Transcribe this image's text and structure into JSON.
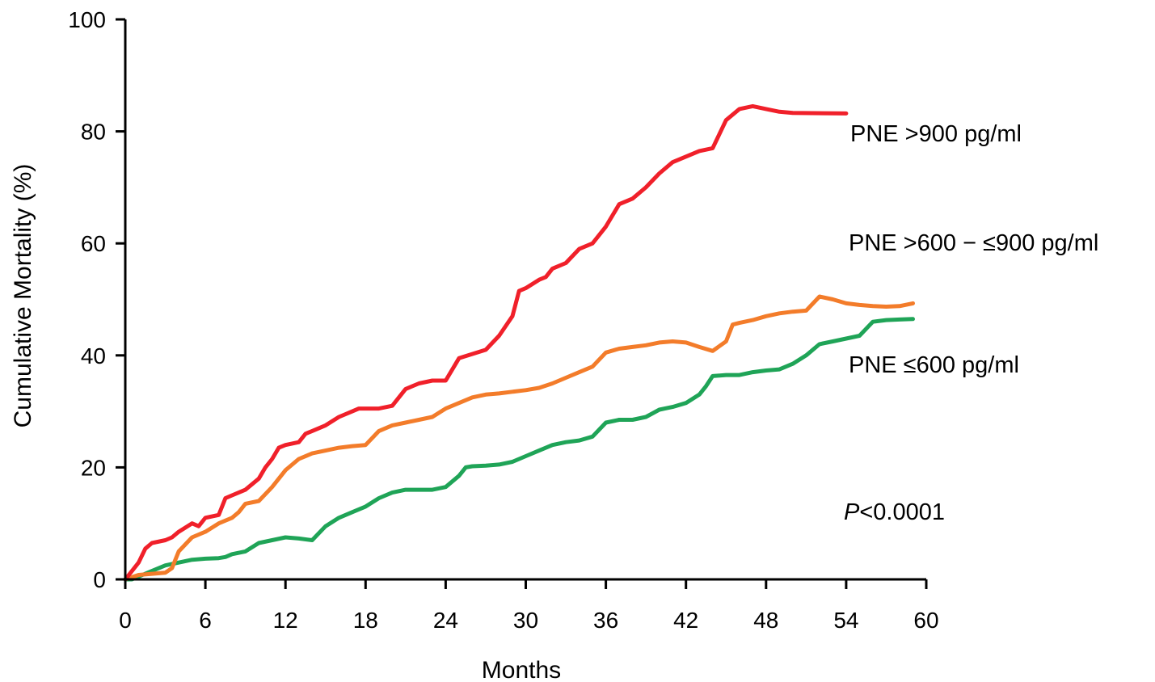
{
  "chart_data": {
    "type": "line",
    "xlabel": "Months",
    "ylabel": "Cumulative Mortality (%)",
    "xlim": [
      0,
      60
    ],
    "ylim": [
      0,
      100
    ],
    "xticks": [
      "0",
      "6",
      "12",
      "18",
      "24",
      "30",
      "36",
      "42",
      "48",
      "54",
      "60"
    ],
    "yticks": [
      "0",
      "20",
      "40",
      "60",
      "80",
      "100"
    ],
    "grid": false,
    "annotation": {
      "prefix": "P",
      "text": "<0.0001"
    },
    "series": [
      {
        "name": "PNE >900 pg/ml",
        "color": "#f0202a",
        "points": [
          [
            0,
            0
          ],
          [
            0.5,
            1.5
          ],
          [
            1,
            3
          ],
          [
            1.5,
            5.5
          ],
          [
            2,
            6.5
          ],
          [
            3,
            7
          ],
          [
            3.5,
            7.5
          ],
          [
            4,
            8.5
          ],
          [
            5,
            10
          ],
          [
            5.5,
            9.5
          ],
          [
            6,
            11
          ],
          [
            7,
            11.5
          ],
          [
            7.5,
            14.5
          ],
          [
            8,
            15
          ],
          [
            9,
            16
          ],
          [
            10,
            18
          ],
          [
            10.5,
            20
          ],
          [
            11,
            21.5
          ],
          [
            11.5,
            23.5
          ],
          [
            12,
            24
          ],
          [
            13,
            24.5
          ],
          [
            13.5,
            26
          ],
          [
            14,
            26.5
          ],
          [
            15,
            27.5
          ],
          [
            16,
            29
          ],
          [
            17,
            30
          ],
          [
            17.5,
            30.5
          ],
          [
            19,
            30.5
          ],
          [
            20,
            31
          ],
          [
            21,
            34
          ],
          [
            22,
            35
          ],
          [
            23,
            35.5
          ],
          [
            24,
            35.5
          ],
          [
            25,
            39.5
          ],
          [
            27,
            41
          ],
          [
            28,
            43.5
          ],
          [
            29,
            47
          ],
          [
            29.5,
            51.5
          ],
          [
            30,
            52
          ],
          [
            31,
            53.5
          ],
          [
            31.5,
            54
          ],
          [
            32,
            55.5
          ],
          [
            33,
            56.5
          ],
          [
            34,
            59
          ],
          [
            35,
            60
          ],
          [
            36,
            63
          ],
          [
            37,
            67
          ],
          [
            38,
            68
          ],
          [
            39,
            70
          ],
          [
            40,
            72.5
          ],
          [
            41,
            74.5
          ],
          [
            42,
            75.5
          ],
          [
            43,
            76.5
          ],
          [
            44,
            77
          ],
          [
            44.5,
            79.5
          ],
          [
            45,
            82
          ],
          [
            46,
            84
          ],
          [
            47,
            84.5
          ],
          [
            48,
            84
          ],
          [
            49,
            83.5
          ],
          [
            50,
            83.3
          ],
          [
            54,
            83.2
          ]
        ]
      },
      {
        "name": "PNE >600 − ≤900 pg/ml",
        "color": "#f37c2a",
        "points": [
          [
            0,
            0
          ],
          [
            1,
            0.8
          ],
          [
            2,
            1
          ],
          [
            3,
            1.2
          ],
          [
            3.5,
            2
          ],
          [
            4,
            5
          ],
          [
            5,
            7.5
          ],
          [
            6,
            8.5
          ],
          [
            7,
            10
          ],
          [
            8,
            11
          ],
          [
            8.5,
            12
          ],
          [
            9,
            13.5
          ],
          [
            10,
            14
          ],
          [
            11,
            16.5
          ],
          [
            12,
            19.5
          ],
          [
            13,
            21.5
          ],
          [
            14,
            22.5
          ],
          [
            15,
            23
          ],
          [
            16,
            23.5
          ],
          [
            17,
            23.8
          ],
          [
            18,
            24
          ],
          [
            19,
            26.5
          ],
          [
            20,
            27.5
          ],
          [
            21,
            28
          ],
          [
            22,
            28.5
          ],
          [
            23,
            29
          ],
          [
            24,
            30.5
          ],
          [
            25,
            31.5
          ],
          [
            26,
            32.5
          ],
          [
            27,
            33
          ],
          [
            28,
            33.2
          ],
          [
            29,
            33.5
          ],
          [
            30,
            33.8
          ],
          [
            31,
            34.2
          ],
          [
            32,
            35
          ],
          [
            33,
            36
          ],
          [
            34,
            37
          ],
          [
            35,
            38
          ],
          [
            36,
            40.5
          ],
          [
            37,
            41.2
          ],
          [
            38,
            41.5
          ],
          [
            39,
            41.8
          ],
          [
            40,
            42.3
          ],
          [
            41,
            42.5
          ],
          [
            42,
            42.3
          ],
          [
            43,
            41.5
          ],
          [
            44,
            40.8
          ],
          [
            45,
            42.5
          ],
          [
            45.5,
            45.5
          ],
          [
            46,
            45.8
          ],
          [
            47,
            46.3
          ],
          [
            48,
            47
          ],
          [
            49,
            47.5
          ],
          [
            50,
            47.8
          ],
          [
            51,
            48
          ],
          [
            52,
            50.5
          ],
          [
            53,
            50
          ],
          [
            54,
            49.3
          ],
          [
            55,
            49
          ],
          [
            56,
            48.8
          ],
          [
            57,
            48.7
          ],
          [
            58,
            48.8
          ],
          [
            59,
            49.3
          ]
        ]
      },
      {
        "name": "PNE ≤600 pg/ml",
        "color": "#1fa457",
        "points": [
          [
            0,
            0
          ],
          [
            0.5,
            0
          ],
          [
            1,
            0.5
          ],
          [
            2,
            1.5
          ],
          [
            3,
            2.5
          ],
          [
            4,
            3
          ],
          [
            5,
            3.5
          ],
          [
            6,
            3.7
          ],
          [
            7,
            3.8
          ],
          [
            7.5,
            4
          ],
          [
            8,
            4.5
          ],
          [
            9,
            5
          ],
          [
            10,
            6.5
          ],
          [
            11,
            7
          ],
          [
            12,
            7.5
          ],
          [
            13,
            7.3
          ],
          [
            14,
            7
          ],
          [
            15,
            9.5
          ],
          [
            16,
            11
          ],
          [
            17,
            12
          ],
          [
            18,
            13
          ],
          [
            19,
            14.5
          ],
          [
            20,
            15.5
          ],
          [
            21,
            16
          ],
          [
            22,
            16
          ],
          [
            23,
            16
          ],
          [
            24,
            16.5
          ],
          [
            25,
            18.5
          ],
          [
            25.5,
            20
          ],
          [
            26,
            20.2
          ],
          [
            27,
            20.3
          ],
          [
            28,
            20.5
          ],
          [
            29,
            21
          ],
          [
            30,
            22
          ],
          [
            31,
            23
          ],
          [
            32,
            24
          ],
          [
            33,
            24.5
          ],
          [
            34,
            24.8
          ],
          [
            35,
            25.5
          ],
          [
            36,
            28
          ],
          [
            37,
            28.5
          ],
          [
            38,
            28.5
          ],
          [
            39,
            29
          ],
          [
            40,
            30.3
          ],
          [
            41,
            30.8
          ],
          [
            42,
            31.5
          ],
          [
            43,
            33
          ],
          [
            43.5,
            34.5
          ],
          [
            44,
            36.3
          ],
          [
            45,
            36.5
          ],
          [
            46,
            36.5
          ],
          [
            47,
            37
          ],
          [
            48,
            37.3
          ],
          [
            49,
            37.5
          ],
          [
            50,
            38.5
          ],
          [
            51,
            40
          ],
          [
            52,
            42
          ],
          [
            53,
            42.5
          ],
          [
            54,
            43
          ],
          [
            55,
            43.5
          ],
          [
            56,
            46
          ],
          [
            57,
            46.3
          ],
          [
            58,
            46.4
          ],
          [
            59,
            46.5
          ]
        ]
      }
    ]
  }
}
